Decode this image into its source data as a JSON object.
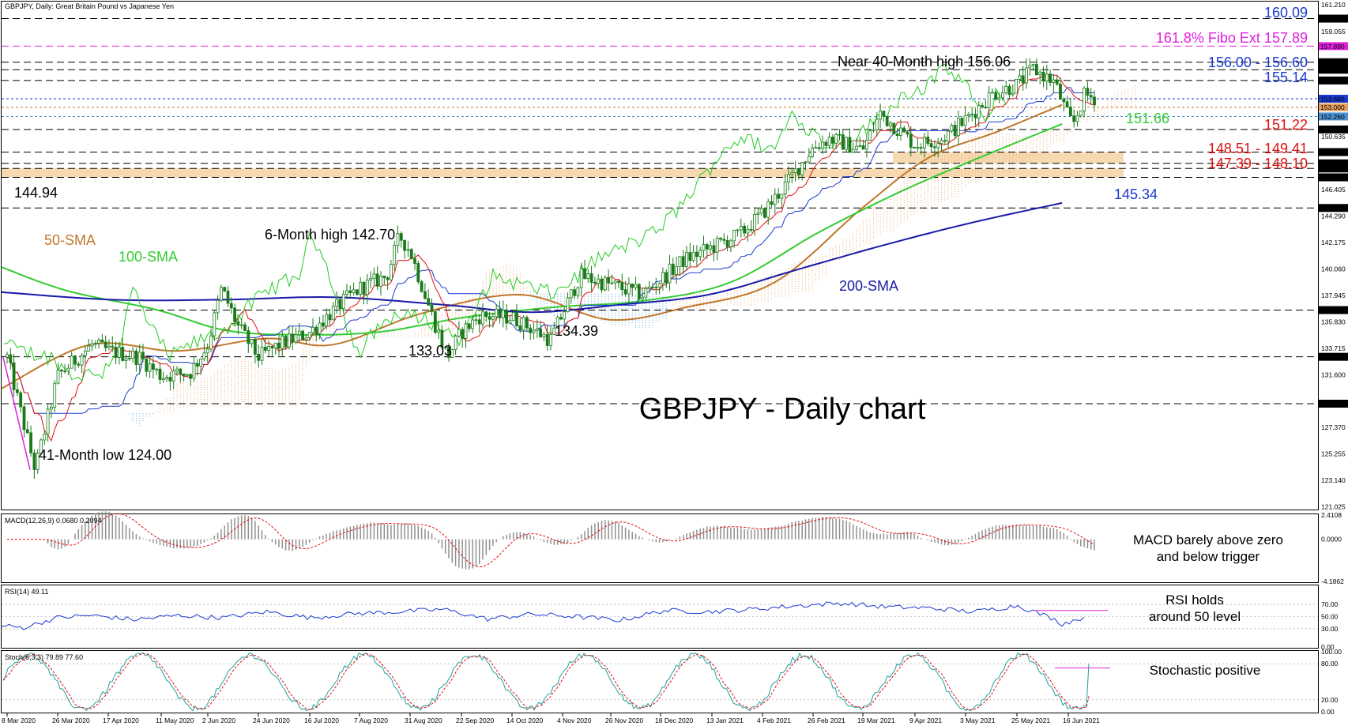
{
  "header": {
    "symbol_line": "GBPJPY, Daily:  Great Britain Pound vs Japanese Yen",
    "chart_title": "GBPJPY - Daily chart"
  },
  "colors": {
    "candle": "#1a7a1a",
    "sma50": "#c0772c",
    "sma100": "#33cc33",
    "sma200": "#1a1aa8",
    "tenkan": "#e01010",
    "kijun": "#1a3ad0",
    "chikou": "#22cc22",
    "cloud_up": "#e8a060",
    "cloud_down": "#4a90d0",
    "fibo": "#e020e0",
    "support_red": "#e01010",
    "resist_blue": "#1a3ad0",
    "band": "#f5cf9e",
    "macd_hist": "#909090",
    "macd_signal": "#e01010",
    "rsi": "#1a3ad0",
    "stoch_main": "#20a0a0",
    "stoch_signal": "#e01010"
  },
  "annotations": {
    "r160": "160.09",
    "fibo": "161.8% Fibo Ext 157.89",
    "r156": "156.00 - 156.60",
    "r155": "155.14",
    "high40": "Near 40-Month high 156.06",
    "s151_66": "151.66",
    "s151_22": "151.22",
    "s148": "148.51 - 149.41",
    "s147": "147.39 - 148.10",
    "s145": "145.34",
    "l144": "144.94",
    "sma50": "50-SMA",
    "sma100": "100-SMA",
    "high6": "6-Month high 142.70",
    "sma200": "200-SMA",
    "low133": "133.03",
    "low134": "134.39",
    "low41": "41-Month low 124.00"
  },
  "chart_data": [
    {
      "type": "candlestick",
      "title": "GBPJPY - Daily chart",
      "price_scale": [
        "161.210",
        "160.090",
        "159.055",
        "157.890",
        "156.600",
        "156.000",
        "155.140",
        "153.680",
        "153.000",
        "152.260",
        "151.220",
        "150.635",
        "149.410",
        "148.100",
        "147.390",
        "146.405",
        "144.940",
        "144.290",
        "142.175",
        "140.060",
        "137.945",
        "136.770",
        "135.830",
        "133.715",
        "133.030",
        "131.600",
        "129.280",
        "127.370",
        "125.255",
        "123.140",
        "121.025"
      ],
      "x_ticks": [
        "8 Mar 2020",
        "26 Mar 2020",
        "17 Apr 2020",
        "11 May 2020",
        "2 Jun 2020",
        "24 Jun 2020",
        "16 Jul 2020",
        "7 Aug 2020",
        "31 Aug 2020",
        "22 Sep 2020",
        "14 Oct 2020",
        "4 Nov 2020",
        "26 Nov 2020",
        "18 Dec 2020",
        "13 Jan 2021",
        "4 Feb 2021",
        "26 Feb 2021",
        "19 Mar 2021",
        "9 Apr 2021",
        "3 May 2021",
        "25 May 2021",
        "16 Jun 2021"
      ],
      "ylim": [
        121.0,
        161.2
      ],
      "key_levels": {
        "resistance": [
          160.09,
          157.89,
          156.6,
          156.0,
          155.14,
          153.68
        ],
        "support": [
          153.0,
          152.26,
          151.22,
          149.41,
          148.51,
          148.1,
          147.39,
          144.94,
          136.77,
          133.03,
          129.28
        ]
      },
      "swing_points": [
        {
          "date": "Mar 2020",
          "price": 124.0,
          "label": "41-Month low"
        },
        {
          "date": "Aug 2020",
          "price": 142.7,
          "label": "6-Month high"
        },
        {
          "date": "Sep 2020",
          "price": 133.03,
          "label": "low"
        },
        {
          "date": "Nov 2020",
          "price": 134.39,
          "label": "low"
        },
        {
          "date": "Jun 2021",
          "price": 156.06,
          "label": "Near 40-Month high"
        }
      ],
      "close_path": [
        [
          "8 Mar 2020",
          133.0
        ],
        [
          "18 Mar 2020",
          124.0
        ],
        [
          "26 Mar 2020",
          131.5
        ],
        [
          "10 Apr 2020",
          134.0
        ],
        [
          "17 Apr 2020",
          133.5
        ],
        [
          "1 May 2020",
          133.0
        ],
        [
          "11 May 2020",
          131.5
        ],
        [
          "25 May 2020",
          131.8
        ],
        [
          "2 Jun 2020",
          134.0
        ],
        [
          "8 Jun 2020",
          138.5
        ],
        [
          "15 Jun 2020",
          135.5
        ],
        [
          "24 Jun 2020",
          133.0
        ],
        [
          "3 Jul 2020",
          134.0
        ],
        [
          "16 Jul 2020",
          135.0
        ],
        [
          "31 Jul 2020",
          137.5
        ],
        [
          "7 Aug 2020",
          138.5
        ],
        [
          "20 Aug 2020",
          139.5
        ],
        [
          "26 Aug 2020",
          142.7
        ],
        [
          "31 Aug 2020",
          141.5
        ],
        [
          "10 Sep 2020",
          136.0
        ],
        [
          "16 Sep 2020",
          133.03
        ],
        [
          "22 Sep 2020",
          135.0
        ],
        [
          "30 Sep 2020",
          136.3
        ],
        [
          "14 Oct 2020",
          136.2
        ],
        [
          "30 Oct 2020",
          134.39
        ],
        [
          "4 Nov 2020",
          136.5
        ],
        [
          "12 Nov 2020",
          139.5
        ],
        [
          "26 Nov 2020",
          138.8
        ],
        [
          "10 Dec 2020",
          138.0
        ],
        [
          "18 Dec 2020",
          139.2
        ],
        [
          "30 Dec 2020",
          140.8
        ],
        [
          "13 Jan 2021",
          141.8
        ],
        [
          "25 Jan 2021",
          142.8
        ],
        [
          "4 Feb 2021",
          144.5
        ],
        [
          "15 Feb 2021",
          147.0
        ],
        [
          "26 Feb 2021",
          149.8
        ],
        [
          "5 Mar 2021",
          150.5
        ],
        [
          "19 Mar 2021",
          149.6
        ],
        [
          "26 Mar 2021",
          152.5
        ],
        [
          "9 Apr 2021",
          150.0
        ],
        [
          "22 Apr 2021",
          150.5
        ],
        [
          "3 May 2021",
          152.0
        ],
        [
          "14 May 2021",
          154.0
        ],
        [
          "25 May 2021",
          154.8
        ],
        [
          "1 Jun 2021",
          156.06
        ],
        [
          "10 Jun 2021",
          155.0
        ],
        [
          "16 Jun 2021",
          152.2
        ],
        [
          "18 Jun 2021",
          151.6
        ],
        [
          "23 Jun 2021",
          154.0
        ],
        [
          "28 Jun 2021",
          153.7
        ]
      ],
      "series": [
        {
          "name": "50-SMA",
          "values": [
            [
              0,
              130.5
            ],
            [
              0.08,
              134.0
            ],
            [
              0.16,
              133.5
            ],
            [
              0.24,
              134.5
            ],
            [
              0.3,
              134.0
            ],
            [
              0.38,
              136.5
            ],
            [
              0.47,
              138.0
            ],
            [
              0.55,
              136.0
            ],
            [
              0.62,
              137.0
            ],
            [
              0.7,
              139.0
            ],
            [
              0.78,
              145.0
            ],
            [
              0.84,
              149.0
            ],
            [
              0.9,
              151.0
            ],
            [
              0.96,
              153.2
            ]
          ]
        },
        {
          "name": "100-SMA",
          "values": [
            [
              0,
              140.2
            ],
            [
              0.06,
              138.3
            ],
            [
              0.14,
              136.8
            ],
            [
              0.2,
              135.2
            ],
            [
              0.26,
              134.8
            ],
            [
              0.34,
              135.0
            ],
            [
              0.42,
              136.2
            ],
            [
              0.5,
              137.0
            ],
            [
              0.58,
              137.5
            ],
            [
              0.66,
              139.0
            ],
            [
              0.74,
              143.0
            ],
            [
              0.82,
              146.5
            ],
            [
              0.9,
              149.5
            ],
            [
              0.96,
              151.66
            ]
          ]
        },
        {
          "name": "200-SMA",
          "values": [
            [
              0,
              138.2
            ],
            [
              0.1,
              137.6
            ],
            [
              0.2,
              137.6
            ],
            [
              0.3,
              137.8
            ],
            [
              0.4,
              137.2
            ],
            [
              0.48,
              136.6
            ],
            [
              0.56,
              137.2
            ],
            [
              0.64,
              138.0
            ],
            [
              0.72,
              140.0
            ],
            [
              0.8,
              142.0
            ],
            [
              0.88,
              143.8
            ],
            [
              0.96,
              145.34
            ]
          ]
        }
      ]
    },
    {
      "type": "bar",
      "title": "MACD(12,26,9) 0.0680 0.2094",
      "ylim": [
        -4.1862,
        2.4108
      ],
      "y_ticks": [
        "2.4108",
        "0.0000",
        "-4.1862"
      ],
      "last_values": {
        "macd": 0.068,
        "signal": 0.2094
      },
      "note": "MACD barely above zero and below trigger"
    },
    {
      "type": "line",
      "title": "RSI(14) 49.11",
      "ylim": [
        0,
        100
      ],
      "y_ticks": [
        "70.00",
        "50.00",
        "30.00",
        "0.00"
      ],
      "last_value": 49.11,
      "path": [
        [
          0.0,
          35
        ],
        [
          0.02,
          32
        ],
        [
          0.05,
          48
        ],
        [
          0.08,
          52
        ],
        [
          0.12,
          45
        ],
        [
          0.16,
          52
        ],
        [
          0.2,
          48
        ],
        [
          0.24,
          58
        ],
        [
          0.28,
          48
        ],
        [
          0.32,
          55
        ],
        [
          0.36,
          58
        ],
        [
          0.4,
          62
        ],
        [
          0.44,
          46
        ],
        [
          0.48,
          54
        ],
        [
          0.52,
          50
        ],
        [
          0.56,
          44
        ],
        [
          0.6,
          60
        ],
        [
          0.64,
          58
        ],
        [
          0.68,
          62
        ],
        [
          0.72,
          68
        ],
        [
          0.76,
          72
        ],
        [
          0.8,
          66
        ],
        [
          0.84,
          64
        ],
        [
          0.88,
          58
        ],
        [
          0.92,
          68
        ],
        [
          0.95,
          48
        ],
        [
          0.96,
          38
        ],
        [
          0.98,
          49
        ]
      ],
      "note": "RSI holds around 50 level"
    },
    {
      "type": "line",
      "title": "Stoch(5,3,3) 79.89 77.60",
      "ylim": [
        0,
        100
      ],
      "y_ticks": [
        "100.00",
        "80.00",
        "20.00",
        "0.00"
      ],
      "last_values": {
        "k": 79.89,
        "d": 77.6
      },
      "note": "Stochastic positive"
    }
  ],
  "panels": {
    "macd_title": "MACD(12,26,9) 0.0680 0.2094",
    "macd_note_1": "MACD barely above zero",
    "macd_note_2": "and below trigger",
    "rsi_title": "RSI(14) 49.11",
    "rsi_note_1": "RSI holds",
    "rsi_note_2": "around 50 level",
    "stoch_title": "Stoch(5,3,3) 79.89 77.60",
    "stoch_note": "Stochastic positive"
  },
  "price_tags": {
    "t160_09": "160.090",
    "t157_89": "157.890",
    "t156_60": "156.600",
    "t156_00": "156.000",
    "t155_14": "155.140",
    "t153_68": "153.680",
    "t153_00": "153.000",
    "t152_26": "152.260",
    "t151_22": "151.220",
    "t149_41": "149.410",
    "t148_51": "148.510",
    "t148_10": "148.100",
    "t147_39": "147.390",
    "t144_94": "144.940",
    "t136_77": "136.770",
    "t133_03": "133.030",
    "t129_28": "129.280"
  }
}
